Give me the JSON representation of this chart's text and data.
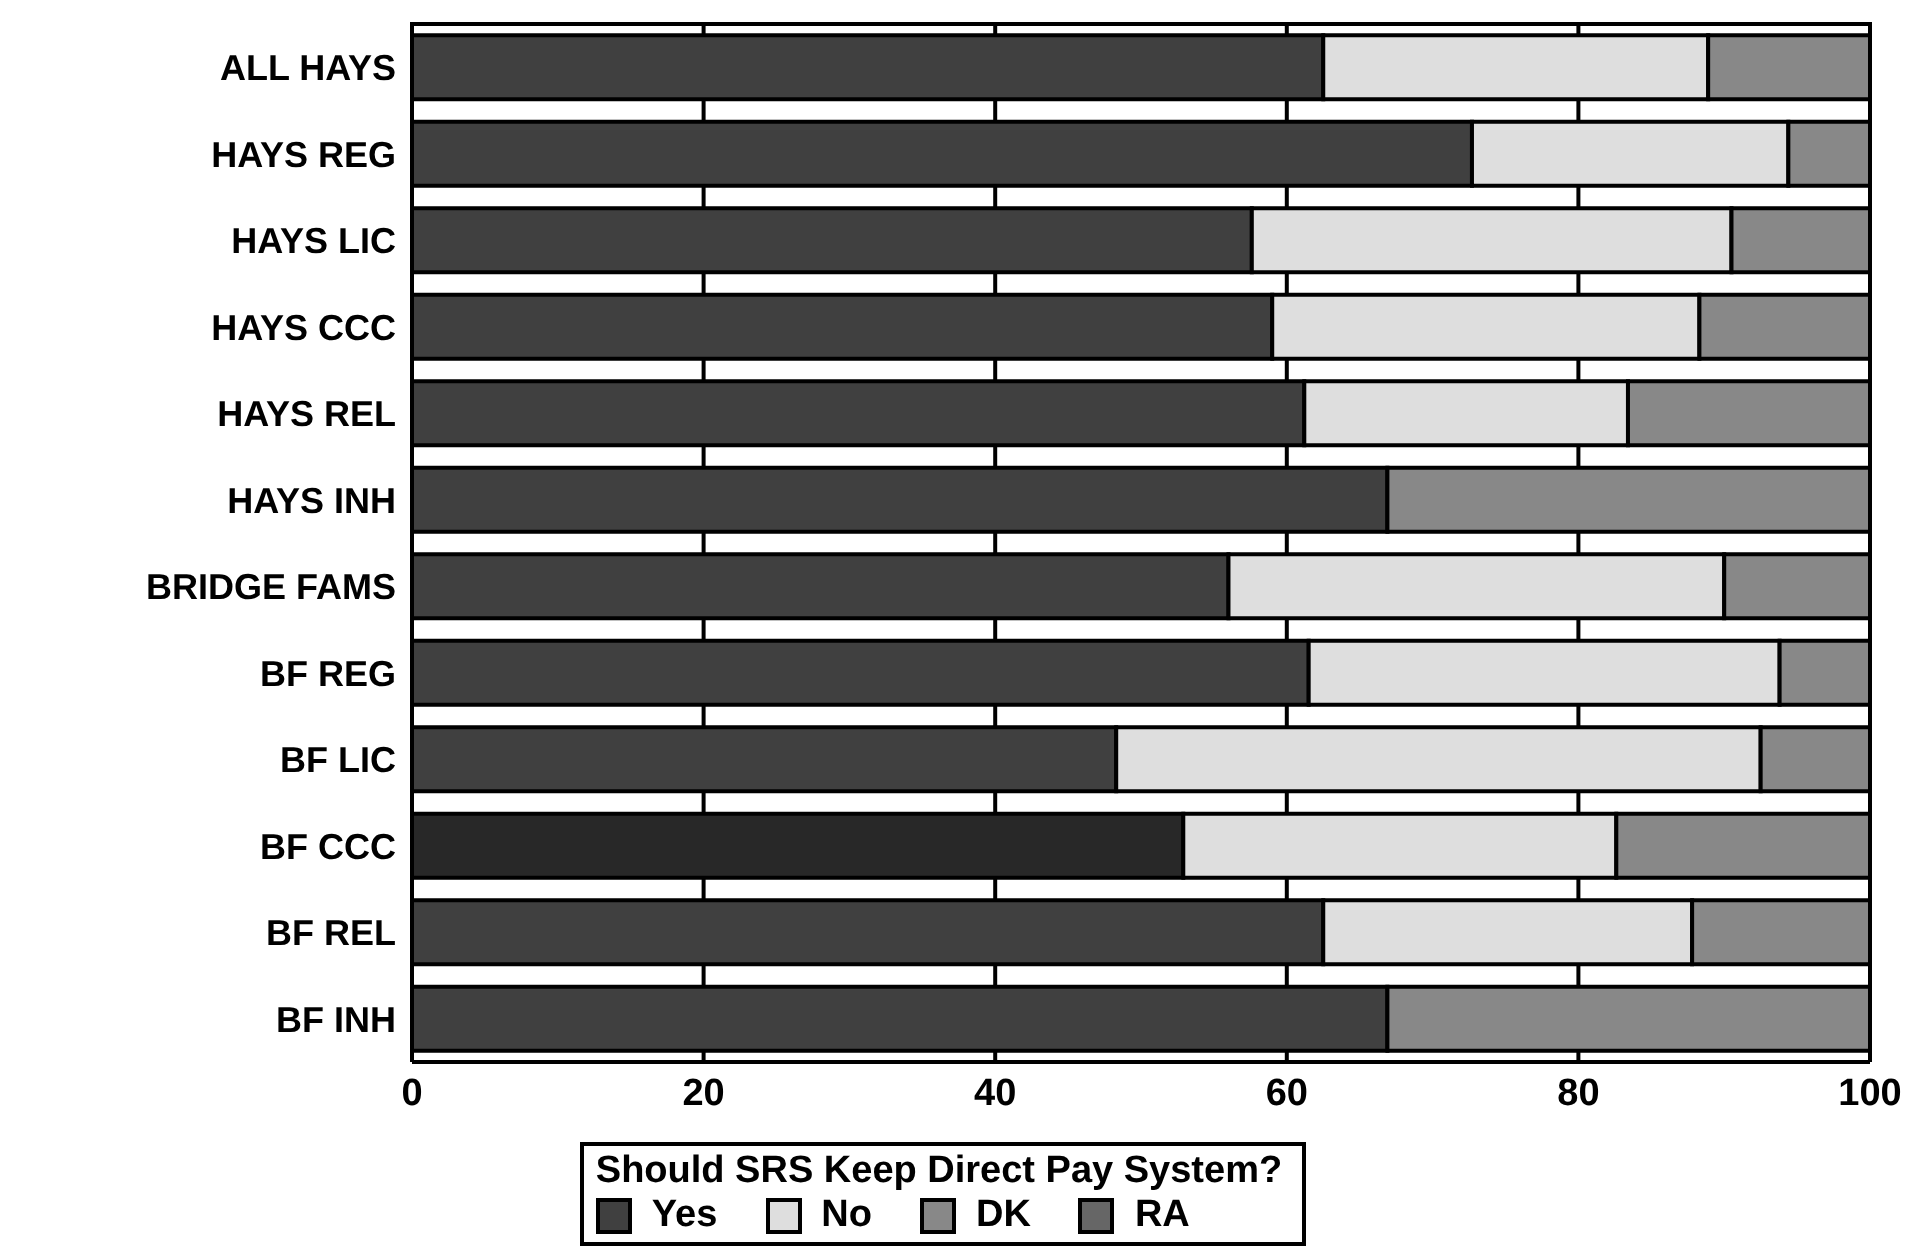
{
  "chart_data": {
    "type": "bar",
    "orientation": "horizontal",
    "stacked": true,
    "categories": [
      "ALL HAYS",
      "HAYS REG",
      "HAYS LIC",
      "HAYS CCC",
      "HAYS REL",
      "HAYS INH",
      "BRIDGE FAMS",
      "BF REG",
      "BF LIC",
      "BF CCC",
      "BF REL",
      "BF INH"
    ],
    "series": [
      {
        "name": "Yes",
        "color": "#404040",
        "colors": [
          "#404040",
          "#404040",
          "#404040",
          "#404040",
          "#404040",
          "#404040",
          "#404040",
          "#404040",
          "#404040",
          "#282828",
          "#404040",
          "#404040"
        ],
        "values": [
          62.5,
          72.7,
          57.6,
          59.0,
          61.2,
          66.9,
          56.0,
          61.5,
          48.3,
          52.9,
          62.5,
          66.9
        ]
      },
      {
        "name": "No",
        "color": "#dedede",
        "values": [
          26.4,
          21.7,
          32.9,
          29.3,
          22.2,
          null,
          34.0,
          32.3,
          44.2,
          29.7,
          25.3,
          null
        ]
      },
      {
        "name": "DK",
        "color": "#888888",
        "values": [
          11.1,
          5.6,
          9.5,
          11.7,
          16.6,
          33.1,
          10.0,
          6.2,
          7.5,
          17.4,
          12.2,
          33.1
        ]
      },
      {
        "name": "RA",
        "color": "#666666",
        "values": [
          null,
          null,
          null,
          null,
          null,
          null,
          null,
          null,
          null,
          null,
          null,
          null
        ]
      }
    ],
    "xlim": [
      0,
      100
    ],
    "xticks": [
      0,
      20,
      40,
      60,
      80,
      100
    ],
    "grid": "x",
    "legend": "bottom",
    "legend_title": "Should SRS Keep Direct Pay System?"
  }
}
